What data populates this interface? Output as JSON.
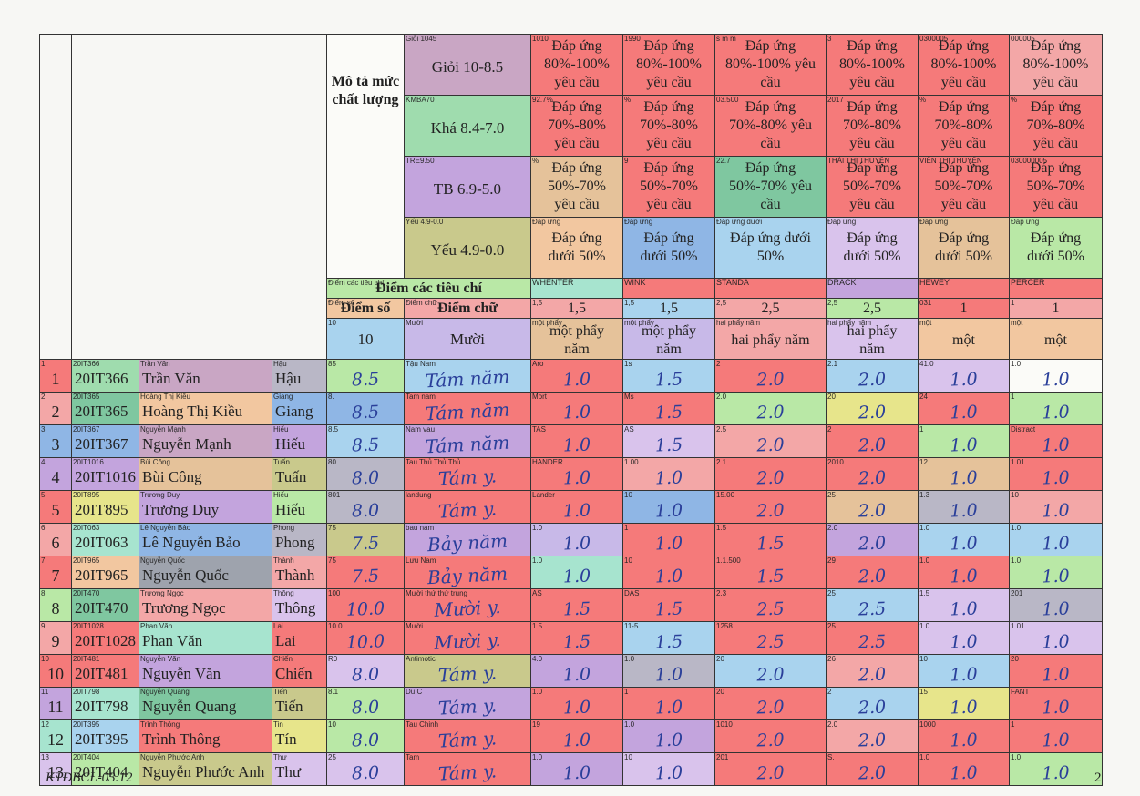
{
  "header": {
    "mo_ta": "Mô tả mức chất lượng",
    "levels": [
      {
        "tag": "Giỏi 1045",
        "label": "Giỏi 10-8.5"
      },
      {
        "tag": "KMBA70",
        "label": "Khá 8.4-7.0"
      },
      {
        "tag": "TRE9.50",
        "label": "TB 6.9-5.0"
      },
      {
        "tag": "Yếu 4.9-0.0",
        "label": "Yếu 4.9-0.0"
      }
    ],
    "desc_rows": [
      {
        "text": "Đáp ứng 80%-100% yêu cầu",
        "tags": [
          "1010",
          "1990",
          "s m m",
          "3",
          "0300005",
          "000005"
        ]
      },
      {
        "text": "Đáp ứng 70%-80% yêu cầu",
        "tags": [
          "92.7%",
          "%",
          "03.500",
          "2017",
          "%",
          "%"
        ]
      },
      {
        "text": "Đáp ứng 50%-70% yêu cầu",
        "tags": [
          "%",
          "9",
          "22.7",
          "THÁI THỊ THUYÊN",
          "VIÊN THỊ THUYÊN",
          "030000005"
        ]
      }
    ],
    "weak_text": "Đáp ứng dưới 50%",
    "weak_tags": [
      "Đáp ứng",
      "Đáp ứng",
      "Đáp ứng dưới",
      "Đáp ứng",
      "Đáp ứng",
      "Đáp ứng"
    ],
    "diem_cac_tieu_chi": "Điểm các tiêu chí",
    "diem_cac_tieu_chi_tag": "Điểm các tiêu chí",
    "criteria": [
      "WHENTER",
      "WINK",
      "STANDA",
      "DRACK",
      "HEWEY",
      "PERCER"
    ],
    "diem_so": "Điểm số",
    "diem_so_tag": "Điểm số",
    "diem_chu": "Điểm chữ",
    "diem_chu_tag": "Điểm chữ",
    "weights": [
      {
        "tag": "1,5",
        "value": "1,5"
      },
      {
        "tag": "1,5",
        "value": "1,5"
      },
      {
        "tag": "2,5",
        "value": "2,5"
      },
      {
        "tag": "2,5",
        "value": "2,5"
      },
      {
        "tag": "031",
        "value": "1"
      },
      {
        "tag": "1",
        "value": "1"
      }
    ],
    "total_tag": "10",
    "total": "10",
    "total_word_tag": "Mười",
    "total_word": "Mười",
    "weight_words": [
      {
        "tag": "một phẩy",
        "value": "một phẩy năm"
      },
      {
        "tag": "một phẩy",
        "value": "một phẩy năm"
      },
      {
        "tag": "hai phẩy năm",
        "value": "hai phẩy năm"
      },
      {
        "tag": "hai phẩy năm",
        "value": "hai phẩy năm"
      },
      {
        "tag": "một",
        "value": "một"
      },
      {
        "tag": "một",
        "value": "một"
      }
    ]
  },
  "students": [
    {
      "stt": "1",
      "stt_tag": "1",
      "id": "20IT366",
      "id_tag": "20IT366",
      "surname": "Trần Văn",
      "surname_tag": "Trần Văn",
      "name": "Hậu",
      "name_tag": "Hậu",
      "score": "8.5",
      "score_tag": "85",
      "word": "Tám năm",
      "word_tag": "Tậu Nam",
      "marks": [
        "1.0",
        "1.5",
        "2.0",
        "2.0",
        "1.0",
        "1.0"
      ],
      "mark_tags": [
        "Aro",
        "1s",
        "2",
        "2.1",
        "41.0",
        "1.0"
      ]
    },
    {
      "stt": "2",
      "stt_tag": "2",
      "id": "20IT365",
      "id_tag": "20IT365",
      "surname": "Hoàng Thị Kiều",
      "surname_tag": "Hoàng Thị Kiều",
      "name": "Giang",
      "name_tag": "Giang",
      "score": "8.5",
      "score_tag": "8.",
      "word": "Tám năm",
      "word_tag": "Tam nam",
      "marks": [
        "1.0",
        "1.5",
        "2.0",
        "2.0",
        "1.0",
        "1.0"
      ],
      "mark_tags": [
        "Mort",
        "Ms",
        "2.0",
        "20",
        "24",
        "1"
      ]
    },
    {
      "stt": "3",
      "stt_tag": "3",
      "id": "20IT367",
      "id_tag": "20IT367",
      "surname": "Nguyễn Mạnh",
      "surname_tag": "Nguyễn Mạnh",
      "name": "Hiếu",
      "name_tag": "Hiếu",
      "score": "8.5",
      "score_tag": "8.5",
      "word": "Tám năm",
      "word_tag": "Nam vau",
      "marks": [
        "1.0",
        "1.5",
        "2.0",
        "2.0",
        "1.0",
        "1.0"
      ],
      "mark_tags": [
        "TAS",
        "AS",
        "2.5",
        "2",
        "1",
        "Distract"
      ]
    },
    {
      "stt": "4",
      "stt_tag": "4",
      "id": "20IT1016",
      "id_tag": "20IT1016",
      "surname": "Bùi Công",
      "surname_tag": "Bùi Công",
      "name": "Tuấn",
      "name_tag": "Tuấn",
      "score": "8.0",
      "score_tag": "80",
      "word": "Tám y.",
      "word_tag": "Tau Thủ Thủ Thủ",
      "marks": [
        "1.0",
        "1.0",
        "2.0",
        "2.0",
        "1.0",
        "1.0"
      ],
      "mark_tags": [
        "HANDER",
        "1.00",
        "2.1",
        "2010",
        "12",
        "1.01"
      ]
    },
    {
      "stt": "5",
      "stt_tag": "5",
      "id": "20IT895",
      "id_tag": "20IT895",
      "surname": "Trương Duy",
      "surname_tag": "Trương Duy",
      "name": "Hiếu",
      "name_tag": "Hiếu",
      "score": "8.0",
      "score_tag": "801",
      "word": "Tám y.",
      "word_tag": "landung",
      "marks": [
        "1.0",
        "1.0",
        "2.0",
        "2.0",
        "1.0",
        "1.0"
      ],
      "mark_tags": [
        "Lander",
        "10",
        "15.00",
        "25",
        "1.3",
        "10"
      ]
    },
    {
      "stt": "6",
      "stt_tag": "6",
      "id": "20IT063",
      "id_tag": "20IT063",
      "surname": "Lê Nguyễn Bảo",
      "surname_tag": "Lê Nguyễn Bảo",
      "name": "Phong",
      "name_tag": "Phong",
      "score": "7.5",
      "score_tag": "75",
      "word": "Bảy năm",
      "word_tag": "bau nam",
      "marks": [
        "1.0",
        "1.0",
        "1.5",
        "2.0",
        "1.0",
        "1.0"
      ],
      "mark_tags": [
        "1.0",
        "1",
        "1.5",
        "2.0",
        "1.0",
        "1.0"
      ]
    },
    {
      "stt": "7",
      "stt_tag": "7",
      "id": "20IT965",
      "id_tag": "20IT965",
      "surname": "Nguyễn Quốc",
      "surname_tag": "Nguyễn Quốc",
      "name": "Thành",
      "name_tag": "Thành",
      "score": "7.5",
      "score_tag": "75",
      "word": "Bảy năm",
      "word_tag": "Lưu Nam",
      "marks": [
        "1.0",
        "1.0",
        "1.5",
        "2.0",
        "1.0",
        "1.0"
      ],
      "mark_tags": [
        "1.0",
        "10",
        "1.1.500",
        "29",
        "1.0",
        "1.0"
      ]
    },
    {
      "stt": "8",
      "stt_tag": "8",
      "id": "20IT470",
      "id_tag": "20IT470",
      "surname": "Trương Ngọc",
      "surname_tag": "Trương Ngọc",
      "name": "Thông",
      "name_tag": "Thông",
      "score": "10.0",
      "score_tag": "100",
      "word": "Mười y.",
      "word_tag": "Mười thứ thứ trung",
      "marks": [
        "1.5",
        "1.5",
        "2.5",
        "2.5",
        "1.0",
        "1.0"
      ],
      "mark_tags": [
        "AS",
        "DAS",
        "2.3",
        "25",
        "1.5",
        "201"
      ]
    },
    {
      "stt": "9",
      "stt_tag": "9",
      "id": "20IT1028",
      "id_tag": "20IT1028",
      "surname": "Phan Văn",
      "surname_tag": "Phan Văn",
      "name": "Lai",
      "name_tag": "Lai",
      "score": "10.0",
      "score_tag": "10.0",
      "word": "Mười y.",
      "word_tag": "Mười",
      "marks": [
        "1.5",
        "1.5",
        "2.5",
        "2.5",
        "1.0",
        "1.0"
      ],
      "mark_tags": [
        "1.5",
        "11-5",
        "1258",
        "25",
        "1.0",
        "1.01"
      ]
    },
    {
      "stt": "10",
      "stt_tag": "10",
      "id": "20IT481",
      "id_tag": "20IT481",
      "surname": "Nguyễn Văn",
      "surname_tag": "Nguyễn Văn",
      "name": "Chiến",
      "name_tag": "Chiến",
      "score": "8.0",
      "score_tag": "R0",
      "word": "Tám y.",
      "word_tag": "Antimotic",
      "marks": [
        "1.0",
        "1.0",
        "2.0",
        "2.0",
        "1.0",
        "1.0"
      ],
      "mark_tags": [
        "4.0",
        "1.0",
        "20",
        "26",
        "10",
        "20"
      ]
    },
    {
      "stt": "11",
      "stt_tag": "11",
      "id": "20IT798",
      "id_tag": "20IT798",
      "surname": "Nguyễn Quang",
      "surname_tag": "Nguyễn Quang",
      "name": "Tiến",
      "name_tag": "Tiến",
      "score": "8.0",
      "score_tag": "8.1",
      "word": "Tám y.",
      "word_tag": "Du C",
      "marks": [
        "1.0",
        "1.0",
        "2.0",
        "2.0",
        "1.0",
        "1.0"
      ],
      "mark_tags": [
        "1.0",
        "1",
        "20",
        "2",
        "15",
        "FANT"
      ]
    },
    {
      "stt": "12",
      "stt_tag": "12",
      "id": "20IT395",
      "id_tag": "20IT395",
      "surname": "Trình Thông",
      "surname_tag": "Trình Thông",
      "name": "Tín",
      "name_tag": "Tin",
      "score": "8.0",
      "score_tag": "10",
      "word": "Tám y.",
      "word_tag": "Tau Chinh",
      "marks": [
        "1.0",
        "1.0",
        "2.0",
        "2.0",
        "1.0",
        "1.0"
      ],
      "mark_tags": [
        "19",
        "1.0",
        "1010",
        "2.0",
        "1000",
        "1"
      ]
    },
    {
      "stt": "13",
      "stt_tag": "13",
      "id": "20IT404",
      "id_tag": "20IT404",
      "surname": "Nguyễn Phước Anh",
      "surname_tag": "Nguyễn Phước Anh",
      "name": "Thư",
      "name_tag": "Thư",
      "score": "8.0",
      "score_tag": "25",
      "word": "Tám y.",
      "word_tag": "Tam",
      "marks": [
        "1.0",
        "1.0",
        "2.0",
        "2.0",
        "1.0",
        "1.0"
      ],
      "mark_tags": [
        "1.0",
        "10",
        "201",
        "S.",
        "1.0",
        "1.0"
      ]
    }
  ],
  "footer": {
    "code": "KTĐBCL-03.12",
    "page": "2"
  }
}
